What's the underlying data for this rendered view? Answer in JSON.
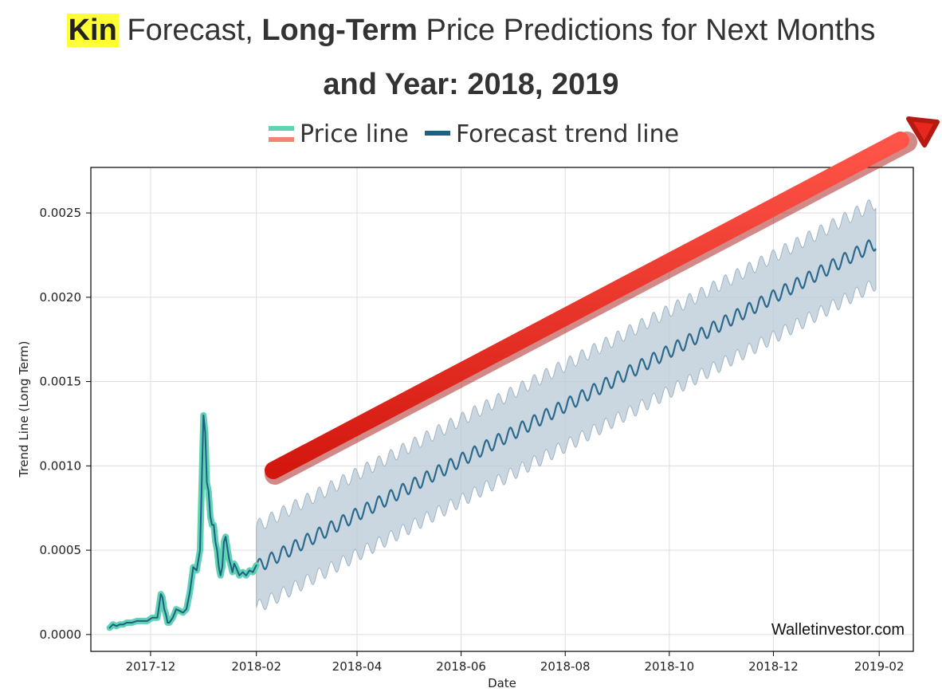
{
  "title": {
    "highlight": "Kin",
    "part1": " Forecast, ",
    "bold_phrase": "Long-Term",
    "part2": " Price Predictions for Next Months",
    "line2": "and Year: 2018, 2019"
  },
  "watermark": "Walletinvestor.com",
  "colors": {
    "price_line": "#5fd3b4",
    "price_line_alt": "#f08575",
    "trend_line": "#1f5f82",
    "band": "#b8c9d7",
    "arrow": "#e8281e",
    "highlight": "#ffff33"
  },
  "chart_data": {
    "type": "line",
    "title": "",
    "xlabel": "Date",
    "ylabel": "Trend Line (Long Term)",
    "x_ticks": [
      "2017-12",
      "2018-02",
      "2018-04",
      "2018-06",
      "2018-08",
      "2018-10",
      "2018-12",
      "2019-02"
    ],
    "y_ticks": [
      "0.0000",
      "0.0005",
      "0.0010",
      "0.0015",
      "0.0020",
      "0.0025"
    ],
    "xlim": [
      "2017-10-27",
      "2019-02-21"
    ],
    "ylim": [
      -0.0001,
      0.00277
    ],
    "grid": true,
    "legend": {
      "placement": "top-center",
      "entries": [
        "Price line",
        "Forecast trend line"
      ]
    },
    "series": [
      {
        "name": "Price line",
        "x": [
          "2017-11-07",
          "2017-11-09",
          "2017-11-11",
          "2017-11-13",
          "2017-11-15",
          "2017-11-17",
          "2017-11-20",
          "2017-11-23",
          "2017-11-26",
          "2017-11-29",
          "2017-12-02",
          "2017-12-05",
          "2017-12-07",
          "2017-12-08",
          "2017-12-09",
          "2017-12-10",
          "2017-12-11",
          "2017-12-12",
          "2017-12-14",
          "2017-12-16",
          "2017-12-18",
          "2017-12-20",
          "2017-12-22",
          "2017-12-24",
          "2017-12-26",
          "2017-12-28",
          "2017-12-30",
          "2018-01-01",
          "2018-01-02",
          "2018-01-03",
          "2018-01-04",
          "2018-01-05",
          "2018-01-06",
          "2018-01-07",
          "2018-01-08",
          "2018-01-09",
          "2018-01-10",
          "2018-01-11",
          "2018-01-12",
          "2018-01-13",
          "2018-01-14",
          "2018-01-16",
          "2018-01-18",
          "2018-01-19",
          "2018-01-20",
          "2018-01-22",
          "2018-01-24",
          "2018-01-26",
          "2018-01-28",
          "2018-01-30",
          "2018-02-01"
        ],
        "values": [
          4e-05,
          6e-05,
          5e-05,
          6e-05,
          6e-05,
          7e-05,
          7e-05,
          8e-05,
          8e-05,
          8e-05,
          0.0001,
          0.0001,
          0.00024,
          0.00022,
          0.00015,
          0.00012,
          7e-05,
          7e-05,
          0.0001,
          0.00015,
          0.00014,
          0.00013,
          0.00015,
          0.00025,
          0.0004,
          0.00038,
          0.0005,
          0.0013,
          0.0012,
          0.0009,
          0.00085,
          0.0007,
          0.00065,
          0.00065,
          0.00055,
          0.0005,
          0.0004,
          0.00035,
          0.0004,
          0.00055,
          0.00058,
          0.00045,
          0.00037,
          0.00042,
          0.0004,
          0.00035,
          0.00037,
          0.00035,
          0.00038,
          0.00037,
          0.00041
        ]
      },
      {
        "name": "Forecast trend line",
        "x_start": "2018-02-01",
        "x_end": "2019-01-30",
        "start_value": 0.0004,
        "end_value": 0.00232,
        "oscillation_period_days": 7,
        "oscillation_amplitude": 4e-05,
        "uncertainty_band": 0.00024
      }
    ]
  }
}
